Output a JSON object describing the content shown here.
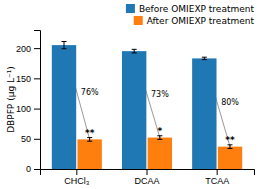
{
  "chart_data": {
    "type": "bar",
    "categories": [
      "CHCl₃",
      "DCAA",
      "TCAA"
    ],
    "series": [
      {
        "name": "Before OMIEXP treatment",
        "values": [
          205,
          195,
          183
        ],
        "errors": [
          6,
          3,
          2
        ]
      },
      {
        "name": "After OMIEXP treatment",
        "values": [
          49,
          52,
          37
        ],
        "errors": [
          3,
          3,
          3
        ],
        "significance": [
          "**",
          "*",
          "**"
        ]
      }
    ],
    "annotations": [
      "76%",
      "73%",
      "80%"
    ],
    "ylabel": "DBPFP (μg L⁻¹)",
    "ylim": [
      0,
      230
    ],
    "yticks": [
      0,
      50,
      100,
      150,
      200
    ],
    "legend": "upper right"
  }
}
